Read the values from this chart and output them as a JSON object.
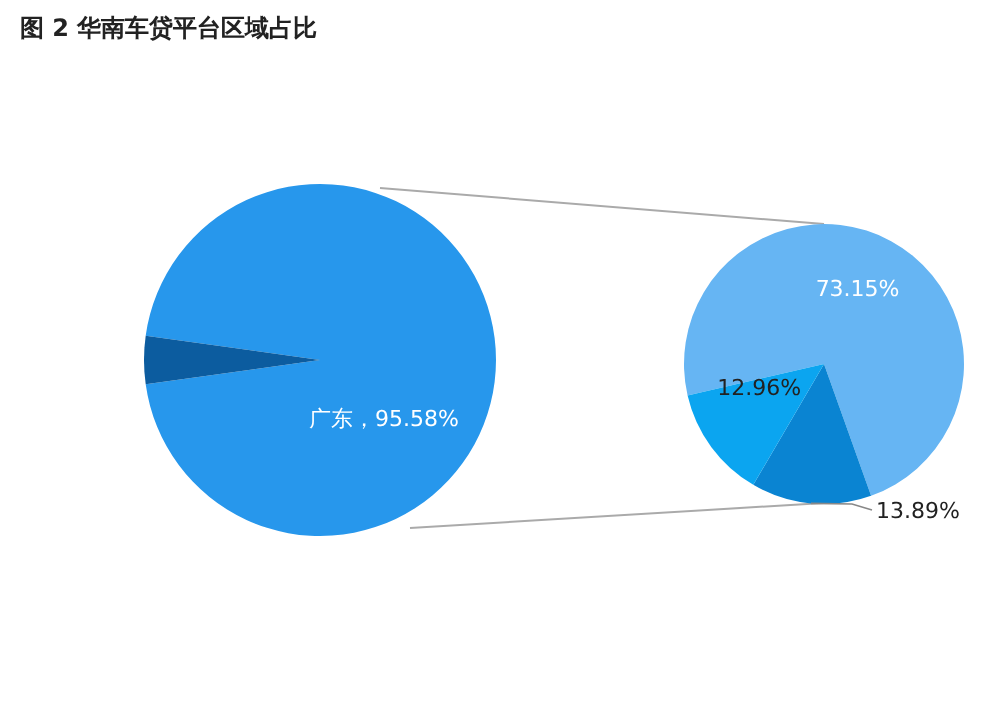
{
  "chart_data": [
    {
      "type": "pie",
      "title": "图 2  华南车贷平台区域占比",
      "categories": [
        "广东",
        null
      ],
      "values": [
        95.58,
        4.42
      ],
      "colors": [
        "#2797ec",
        "#0c5c9f"
      ],
      "value_labels": [
        "95.58%",
        null
      ]
    },
    {
      "type": "pie",
      "categories": [
        null,
        null,
        null
      ],
      "values": [
        73.15,
        13.89,
        12.96
      ],
      "colors": [
        "#66b5f3",
        "#0a84d2",
        "#0ba5f0"
      ],
      "value_labels": [
        "73.15%",
        "13.89%",
        "12.96%"
      ]
    }
  ]
}
